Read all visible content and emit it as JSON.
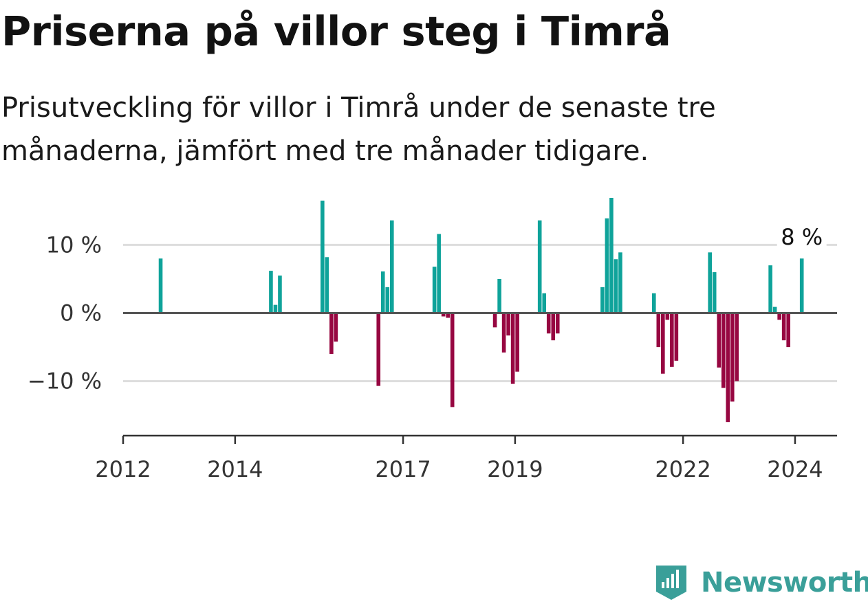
{
  "title": "Priserna på villor steg i Timrå",
  "subtitle": "Prisutveckling för villor i Timrå under de senaste tre månaderna, jämfört med tre månader tidigare.",
  "brand": "Newsworthy",
  "colors": {
    "positive": "#0fa39a",
    "negative": "#970741",
    "brand": "#3a9f99"
  },
  "chart_data": {
    "type": "bar",
    "ylim": [
      -18,
      17
    ],
    "xlim": [
      2012,
      2024.75
    ],
    "yticks": [
      {
        "value": 10,
        "label": "10 %"
      },
      {
        "value": 0,
        "label": "0 %"
      },
      {
        "value": -10,
        "label": "−10 %"
      }
    ],
    "xticks": [
      {
        "value": 2012,
        "label": "2012"
      },
      {
        "value": 2014,
        "label": "2014"
      },
      {
        "value": 2017,
        "label": "2017"
      },
      {
        "value": 2019,
        "label": "2019"
      },
      {
        "value": 2022,
        "label": "2022"
      },
      {
        "value": 2024,
        "label": "2024"
      }
    ],
    "grid": true,
    "last_value_label": "8 %",
    "series": [
      {
        "x": [
          2012.67,
          2014.64,
          2014.72,
          2014.8,
          2015.56,
          2015.64,
          2015.72,
          2015.8,
          2016.56,
          2016.64,
          2016.72,
          2016.8,
          2017.56,
          2017.64,
          2017.72,
          2017.8,
          2017.88,
          2018.64,
          2018.72,
          2018.8,
          2018.88,
          2018.96,
          2019.04,
          2019.44,
          2019.52,
          2019.6,
          2019.68,
          2019.76,
          2020.56,
          2020.64,
          2020.72,
          2020.8,
          2020.88,
          2021.48,
          2021.56,
          2021.64,
          2021.72,
          2021.8,
          2021.88,
          2022.48,
          2022.56,
          2022.64,
          2022.72,
          2022.8,
          2022.88,
          2022.96,
          2023.56,
          2023.64,
          2023.72,
          2023.8,
          2023.88,
          2024.12
        ],
        "values": [
          8,
          6.2,
          1.2,
          5.5,
          16.5,
          8.2,
          -6,
          -4.2,
          -10.7,
          6.1,
          3.8,
          13.6,
          6.8,
          11.6,
          -0.5,
          -0.7,
          -13.8,
          -2.1,
          5,
          -5.8,
          -3.3,
          -10.4,
          -8.6,
          13.6,
          2.9,
          -3,
          -4,
          -3,
          3.8,
          13.9,
          16.9,
          7.9,
          8.9,
          2.9,
          -5,
          -8.9,
          -1,
          -7.9,
          -7,
          8.9,
          6,
          -8,
          -11,
          -16,
          -13,
          -10,
          7,
          0.9,
          -1,
          -4,
          -5,
          8
        ]
      }
    ]
  }
}
